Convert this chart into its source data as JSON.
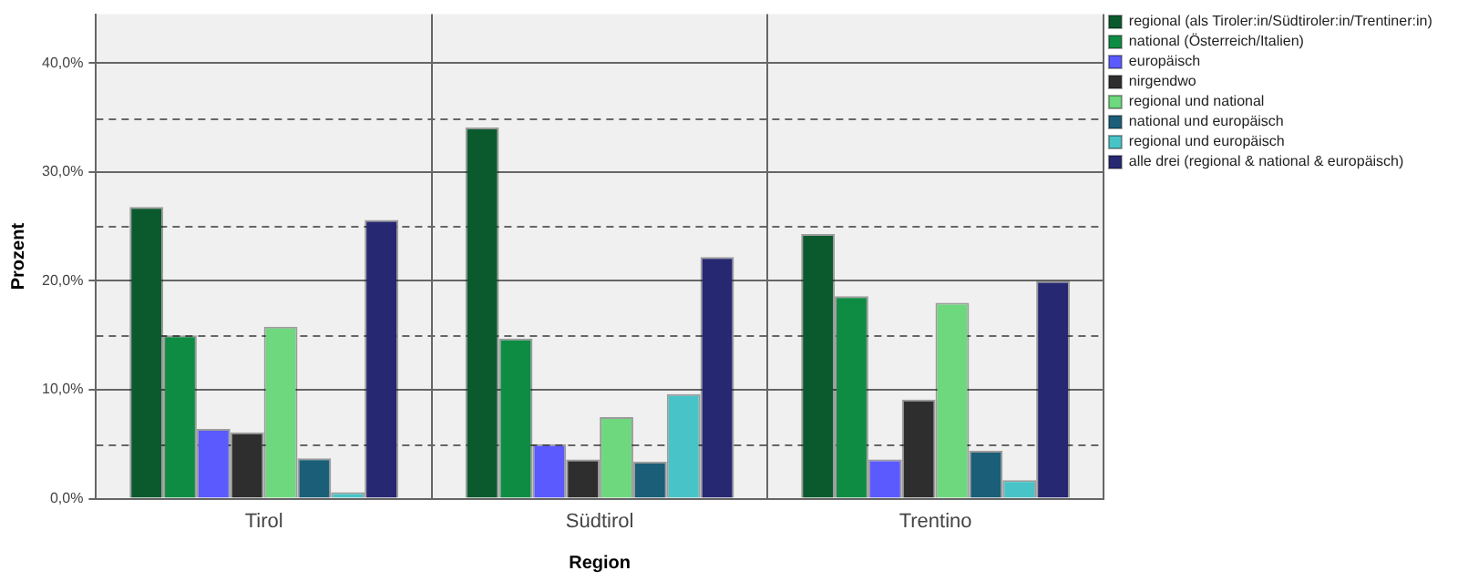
{
  "chart_data": {
    "type": "bar",
    "xlabel": "Region",
    "ylabel": "Prozent",
    "categories": [
      "Tirol",
      "Südtirol",
      "Trentino"
    ],
    "series": [
      {
        "name": "regional (als Tiroler:in/Südtiroler:in/Trentiner:in)",
        "color": "#0a5a2e",
        "values": [
          26.8,
          34.1,
          24.3
        ]
      },
      {
        "name": "national (Österreich/Italien)",
        "color": "#0e8c44",
        "values": [
          15.0,
          14.7,
          18.6
        ]
      },
      {
        "name": "europäisch",
        "color": "#5a5aff",
        "values": [
          6.4,
          5.0,
          3.6
        ]
      },
      {
        "name": "nirgendwo",
        "color": "#2e2e2e",
        "values": [
          6.1,
          3.6,
          9.1
        ]
      },
      {
        "name": "regional und national",
        "color": "#6ed87e",
        "values": [
          15.8,
          7.5,
          18.0
        ]
      },
      {
        "name": "national und europäisch",
        "color": "#1a5e78",
        "values": [
          3.7,
          3.4,
          4.4
        ]
      },
      {
        "name": "regional und europäisch",
        "color": "#48c4c8",
        "values": [
          0.6,
          9.6,
          1.7
        ]
      },
      {
        "name": "alle drei (regional & national & europäisch)",
        "color": "#262872",
        "values": [
          25.6,
          22.2,
          20.0
        ]
      }
    ],
    "ylim": [
      0,
      44.5
    ],
    "yticks": [
      {
        "value": 0,
        "label": "0,0%"
      },
      {
        "value": 5,
        "label": null
      },
      {
        "value": 10,
        "label": "10,0%"
      },
      {
        "value": 15,
        "label": null
      },
      {
        "value": 20,
        "label": "20,0%"
      },
      {
        "value": 25,
        "label": null
      },
      {
        "value": 30,
        "label": "30,0%"
      },
      {
        "value": 35,
        "label": null
      },
      {
        "value": 40,
        "label": "40,0%"
      }
    ],
    "grid": true,
    "legend": "top right"
  }
}
